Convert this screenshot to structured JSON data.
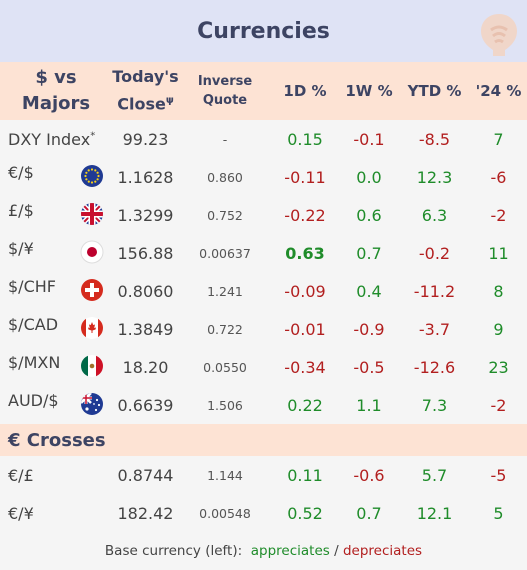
{
  "title": "Currencies",
  "header": {
    "col0_line1": "$ vs",
    "col0_line2": "Majors",
    "col1_line1": "Today's",
    "col1_line2": "Close",
    "col1_sup": "ψ",
    "col2_line1": "Inverse",
    "col2_line2": "Quote",
    "col3": "1D %",
    "col4": "1W %",
    "col5": "YTD %",
    "col6": "'24 %"
  },
  "majors": [
    {
      "pair": "DXY Index",
      "sup": "*",
      "flag": "none",
      "close": "99.23",
      "inv": "-",
      "d1": "0.15",
      "w1": "-0.1",
      "ytd": "-8.5",
      "y24": "7"
    },
    {
      "pair": "€/$",
      "flag": "eu",
      "close": "1.1628",
      "inv": "0.860",
      "d1": "-0.11",
      "w1": "0.0",
      "ytd": "12.3",
      "y24": "-6"
    },
    {
      "pair": "£/$",
      "flag": "uk",
      "close": "1.3299",
      "inv": "0.752",
      "d1": "-0.22",
      "w1": "0.6",
      "ytd": "6.3",
      "y24": "-2"
    },
    {
      "pair": "$/¥",
      "flag": "jp",
      "close": "156.88",
      "inv": "0.00637",
      "d1": "0.63",
      "w1": "0.7",
      "ytd": "-0.2",
      "y24": "11"
    },
    {
      "pair": "$/CHF",
      "flag": "ch",
      "close": "0.8060",
      "inv": "1.241",
      "d1": "-0.09",
      "w1": "0.4",
      "ytd": "-11.2",
      "y24": "8"
    },
    {
      "pair": "$/CAD",
      "flag": "ca",
      "close": "1.3849",
      "inv": "0.722",
      "d1": "-0.01",
      "w1": "-0.9",
      "ytd": "-3.7",
      "y24": "9"
    },
    {
      "pair": "$/MXN",
      "flag": "mx",
      "close": "18.20",
      "inv": "0.0550",
      "d1": "-0.34",
      "w1": "-0.5",
      "ytd": "-12.6",
      "y24": "23"
    },
    {
      "pair": "AUD/$",
      "flag": "au",
      "close": "0.6639",
      "inv": "1.506",
      "d1": "0.22",
      "w1": "1.1",
      "ytd": "7.3",
      "y24": "-2"
    }
  ],
  "crosses_title": "€ Crosses",
  "crosses": [
    {
      "pair": "€/£",
      "close": "0.8744",
      "inv": "1.144",
      "d1": "0.11",
      "w1": "-0.6",
      "ytd": "5.7",
      "y24": "-5"
    },
    {
      "pair": "€/¥",
      "close": "182.42",
      "inv": "0.00548",
      "d1": "0.52",
      "w1": "0.7",
      "ytd": "12.1",
      "y24": "5"
    }
  ],
  "footer": {
    "prefix": "Base currency (left):",
    "appreciates": "appreciates",
    "sep": "/",
    "depreciates": "depreciates"
  },
  "colors": {
    "positive": "#1f8c2a",
    "negative": "#b21f1f",
    "header_bg": "#fde3d4",
    "title_bg": "#dfe3f5"
  }
}
